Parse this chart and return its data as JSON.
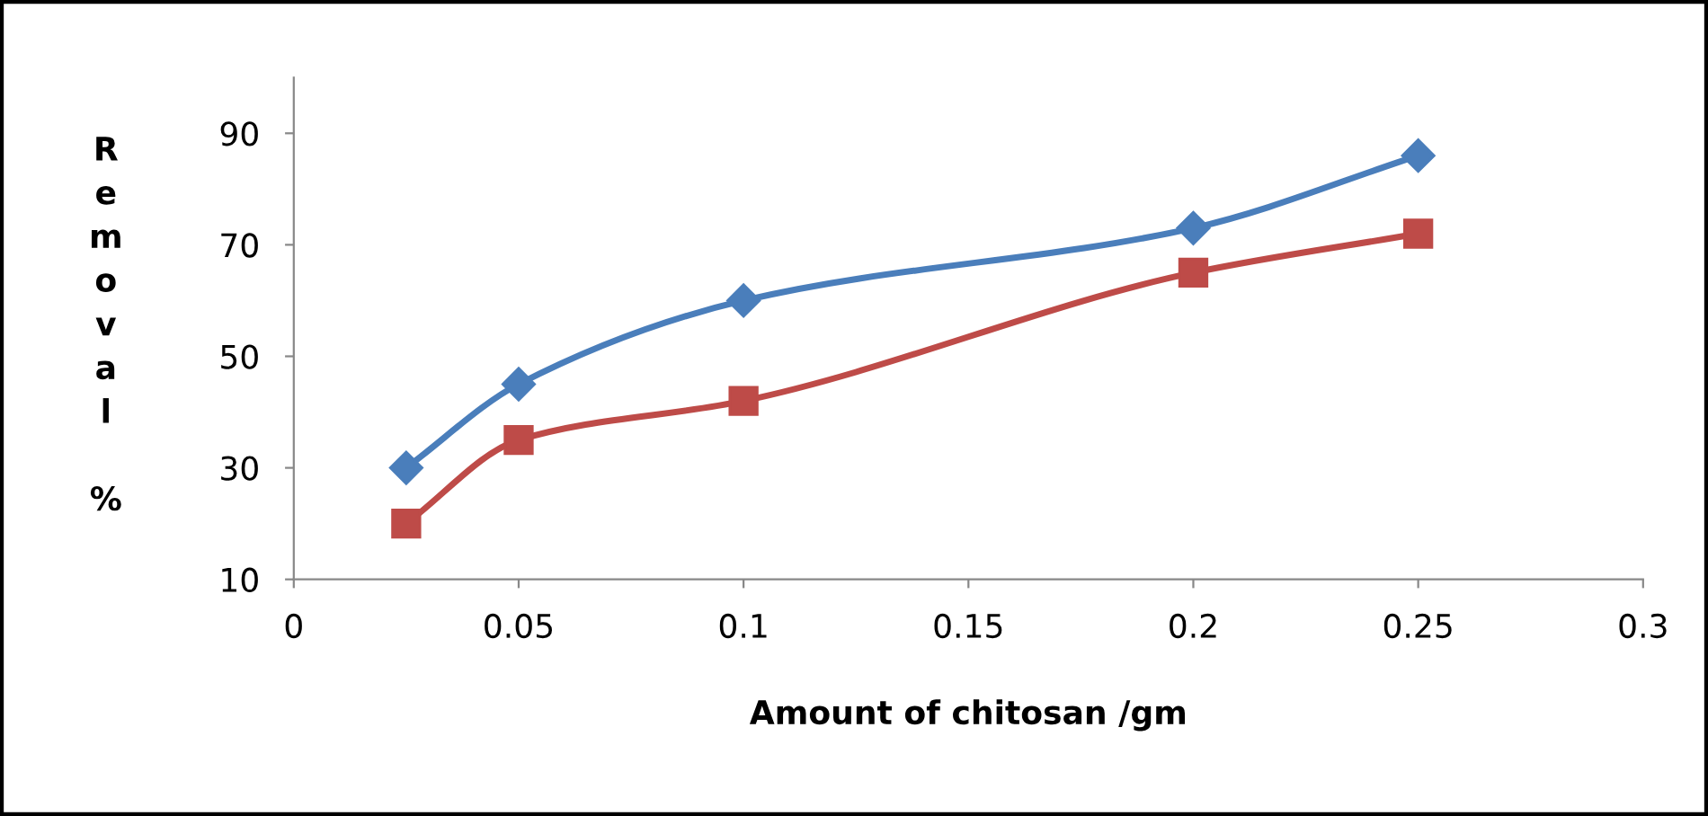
{
  "chart_data": {
    "type": "line",
    "xlabel": "Amount of chitosan /gm",
    "ylabel": "Removal %",
    "x": [
      0.025,
      0.05,
      0.1,
      0.2,
      0.25
    ],
    "series": [
      {
        "color": "#4a7ebb",
        "marker": "diamond",
        "values": [
          30,
          45,
          60,
          73,
          86
        ]
      },
      {
        "color": "#be4b48",
        "marker": "square",
        "values": [
          20,
          35,
          42,
          65,
          72
        ]
      }
    ],
    "xlim": [
      0,
      0.3
    ],
    "xticks": [
      0,
      0.05,
      0.1,
      0.15,
      0.2,
      0.25,
      0.3
    ],
    "ylim": [
      10,
      100
    ],
    "yticks": [
      10,
      30,
      50,
      70,
      90
    ],
    "grid": false,
    "legend": false,
    "line_style": "solid"
  }
}
